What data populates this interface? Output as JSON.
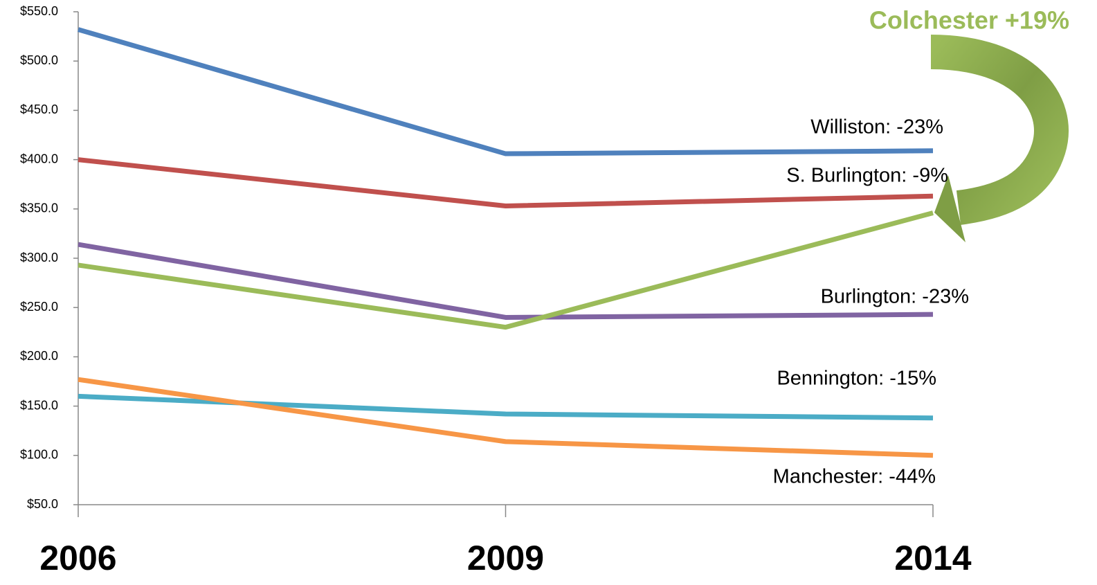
{
  "chart_data": {
    "type": "line",
    "categories": [
      "2006",
      "2009",
      "2014"
    ],
    "series": [
      {
        "name": "Williston: -23%",
        "color": "#4f81bd",
        "values": [
          532,
          406,
          409
        ]
      },
      {
        "name": "S. Burlington: -9%",
        "color": "#c0504d",
        "values": [
          400,
          353,
          363
        ]
      },
      {
        "name": "Burlington: -23%",
        "color": "#8064a2",
        "values": [
          314,
          240,
          243
        ]
      },
      {
        "name": "Colchester +19%",
        "color": "#9bbb59",
        "values": [
          293,
          230,
          346
        ]
      },
      {
        "name": "Bennington: -15%",
        "color": "#4bacc6",
        "values": [
          160,
          142,
          138
        ]
      },
      {
        "name": "Manchester: -44%",
        "color": "#f79646",
        "values": [
          177,
          114,
          100
        ]
      }
    ],
    "ylim": [
      50,
      550
    ],
    "yticks": [
      {
        "value": 50,
        "label": "$50.0"
      },
      {
        "value": 100,
        "label": "$100.0"
      },
      {
        "value": 150,
        "label": "$150.0"
      },
      {
        "value": 200,
        "label": "$200.0"
      },
      {
        "value": 250,
        "label": "$250.0"
      },
      {
        "value": 300,
        "label": "$300.0"
      },
      {
        "value": 350,
        "label": "$350.0"
      },
      {
        "value": 400,
        "label": "$400.0"
      },
      {
        "value": 450,
        "label": "$450.0"
      },
      {
        "value": 500,
        "label": "$500.0"
      },
      {
        "value": 550,
        "label": "$550.0"
      }
    ],
    "grid": false
  }
}
